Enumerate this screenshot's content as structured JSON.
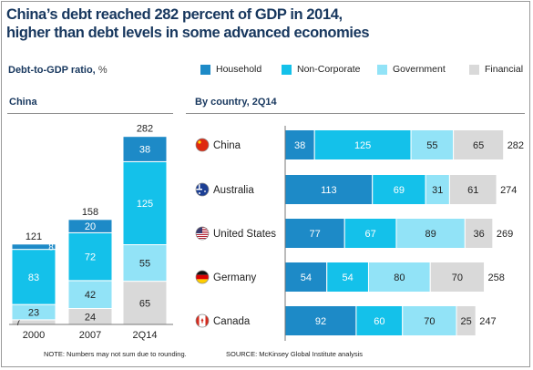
{
  "title_line1": "China’s debt reached 282 percent of GDP in 2014,",
  "title_line2": "higher than debt levels in some advanced economies",
  "subtitle": "Debt-to-GDP ratio,",
  "subtitle_unit": "%",
  "colors": {
    "household": "#1d8ac7",
    "non_corporate": "#14c1ea",
    "government": "#92e3f7",
    "financial": "#d9d9d9",
    "title": "#17375e"
  },
  "legend": [
    {
      "label": "Household",
      "color": "#1d8ac7"
    },
    {
      "label": "Non-Corporate",
      "color": "#14c1ea"
    },
    {
      "label": "Government",
      "color": "#92e3f7"
    },
    {
      "label": "Financial",
      "color": "#d9d9d9"
    }
  ],
  "notes": {
    "note": "NOTE: Numbers may not sum due to rounding.",
    "source": "SOURCE: McKinsey Global Institute analysis"
  },
  "chart_data": [
    {
      "type": "bar",
      "stacked": true,
      "orientation": "vertical",
      "title": "China",
      "categories": [
        "2000",
        "2007",
        "2Q14"
      ],
      "series": [
        {
          "name": "Financial",
          "values": [
            7,
            24,
            65
          ]
        },
        {
          "name": "Government",
          "values": [
            23,
            42,
            55
          ]
        },
        {
          "name": "Non-Corporate",
          "values": [
            83,
            72,
            125
          ]
        },
        {
          "name": "Household",
          "values": [
            8,
            20,
            38
          ]
        }
      ],
      "totals": [
        121,
        158,
        282
      ]
    },
    {
      "type": "bar",
      "stacked": true,
      "orientation": "horizontal",
      "title": "By country, 2Q14",
      "categories": [
        "China",
        "Australia",
        "United States",
        "Germany",
        "Canada"
      ],
      "series": [
        {
          "name": "Household",
          "values": [
            38,
            113,
            77,
            54,
            92
          ]
        },
        {
          "name": "Non-Corporate",
          "values": [
            125,
            69,
            67,
            54,
            60
          ]
        },
        {
          "name": "Government",
          "values": [
            55,
            31,
            89,
            80,
            70
          ]
        },
        {
          "name": "Financial",
          "values": [
            65,
            61,
            36,
            70,
            25
          ]
        }
      ],
      "totals": [
        282,
        274,
        269,
        258,
        247
      ],
      "flags": [
        "china-flag-icon",
        "australia-flag-icon",
        "united-states-flag-icon",
        "germany-flag-icon",
        "canada-flag-icon"
      ]
    }
  ]
}
